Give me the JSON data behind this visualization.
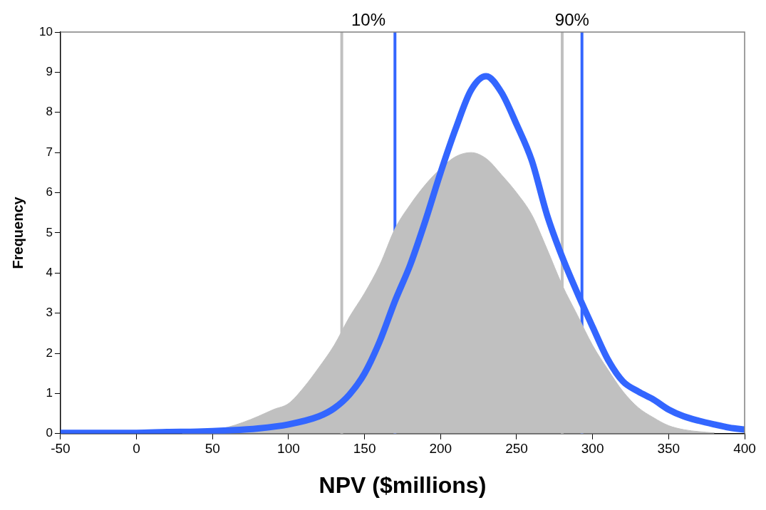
{
  "chart_data": {
    "type": "line",
    "xlabel": "NPV ($millions)",
    "ylabel": "Frequency",
    "xlim": [
      -50,
      400
    ],
    "xticks": [
      -50,
      0,
      50,
      100,
      150,
      200,
      250,
      300,
      350,
      400
    ],
    "ylim": [
      0,
      10
    ],
    "yticks": [
      0,
      1,
      2,
      3,
      4,
      5,
      6,
      7,
      8,
      9,
      10
    ],
    "grid": false,
    "legend": false,
    "marker": "none",
    "series": [
      {
        "type": "area",
        "color": "#c0c0c0",
        "x": [
          30,
          40,
          50,
          60,
          70,
          80,
          90,
          100,
          110,
          120,
          130,
          140,
          150,
          160,
          170,
          180,
          190,
          200,
          210,
          220,
          230,
          240,
          250,
          260,
          270,
          280,
          290,
          300,
          310,
          320,
          330,
          340,
          350,
          360,
          370,
          380
        ],
        "values": [
          0.02,
          0.04,
          0.08,
          0.16,
          0.28,
          0.43,
          0.6,
          0.75,
          1.15,
          1.65,
          2.2,
          2.9,
          3.5,
          4.2,
          5.1,
          5.7,
          6.2,
          6.6,
          6.9,
          7.0,
          6.85,
          6.45,
          6.0,
          5.45,
          4.6,
          3.7,
          2.95,
          2.2,
          1.6,
          1.05,
          0.65,
          0.4,
          0.2,
          0.1,
          0.05,
          0.02
        ]
      },
      {
        "type": "line",
        "color": "#3366ff",
        "x": [
          -50,
          -30,
          -10,
          0,
          20,
          40,
          60,
          80,
          100,
          120,
          130,
          140,
          150,
          160,
          170,
          180,
          190,
          200,
          210,
          220,
          230,
          240,
          250,
          260,
          270,
          280,
          290,
          300,
          310,
          320,
          330,
          340,
          350,
          360,
          370,
          380,
          390,
          400
        ],
        "values": [
          0.02,
          0.02,
          0.02,
          0.02,
          0.04,
          0.05,
          0.08,
          0.13,
          0.23,
          0.43,
          0.63,
          0.97,
          1.5,
          2.3,
          3.3,
          4.2,
          5.3,
          6.5,
          7.6,
          8.55,
          8.9,
          8.5,
          7.7,
          6.8,
          5.45,
          4.4,
          3.5,
          2.66,
          1.85,
          1.3,
          1.05,
          0.85,
          0.6,
          0.43,
          0.32,
          0.23,
          0.15,
          0.1
        ]
      }
    ],
    "ref_lines": [
      {
        "axis": "x",
        "value": 135,
        "color": "#c0c0c0"
      },
      {
        "axis": "x",
        "value": 170,
        "color": "#3366ff"
      },
      {
        "axis": "x",
        "value": 280,
        "color": "#c0c0c0"
      },
      {
        "axis": "x",
        "value": 293,
        "color": "#3366ff"
      }
    ],
    "annotations": [
      "10%",
      "90%"
    ]
  }
}
